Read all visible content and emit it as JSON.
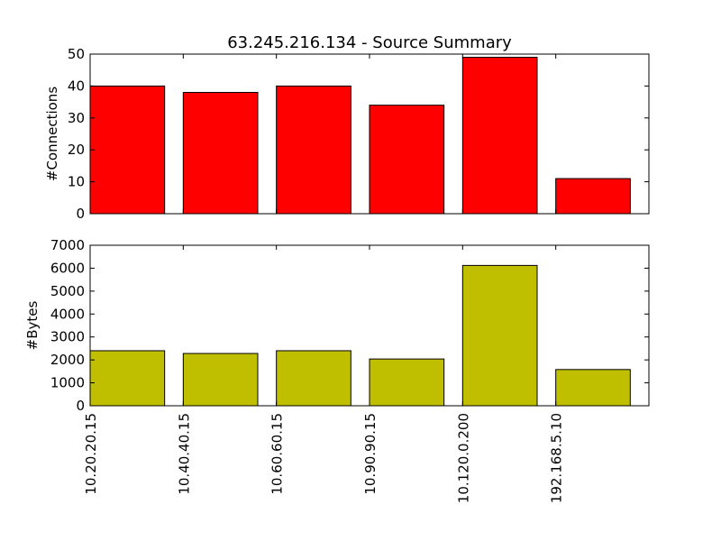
{
  "chart_data": [
    {
      "type": "bar",
      "title": "63.245.216.134 - Source Summary",
      "ylabel": "#Connections",
      "xlabel": "",
      "categories": [
        "10.20.20.15",
        "10.40.40.15",
        "10.60.60.15",
        "10.90.90.15",
        "10.120.0.200",
        "192.168.5.10"
      ],
      "values": [
        40,
        38,
        40,
        34,
        49,
        11
      ],
      "ylim": [
        0,
        50
      ],
      "yticks": [
        0,
        10,
        20,
        30,
        40,
        50
      ],
      "bar_color": "#ff0000",
      "grid": false
    },
    {
      "type": "bar",
      "title": "",
      "ylabel": "#Bytes",
      "xlabel": "",
      "categories": [
        "10.20.20.15",
        "10.40.40.15",
        "10.60.60.15",
        "10.90.90.15",
        "10.120.0.200",
        "192.168.5.10"
      ],
      "values": [
        2400,
        2280,
        2400,
        2040,
        6120,
        1580
      ],
      "ylim": [
        0,
        7000
      ],
      "yticks": [
        0,
        1000,
        2000,
        3000,
        4000,
        5000,
        6000,
        7000
      ],
      "bar_color": "#bfbf00",
      "grid": false
    }
  ]
}
